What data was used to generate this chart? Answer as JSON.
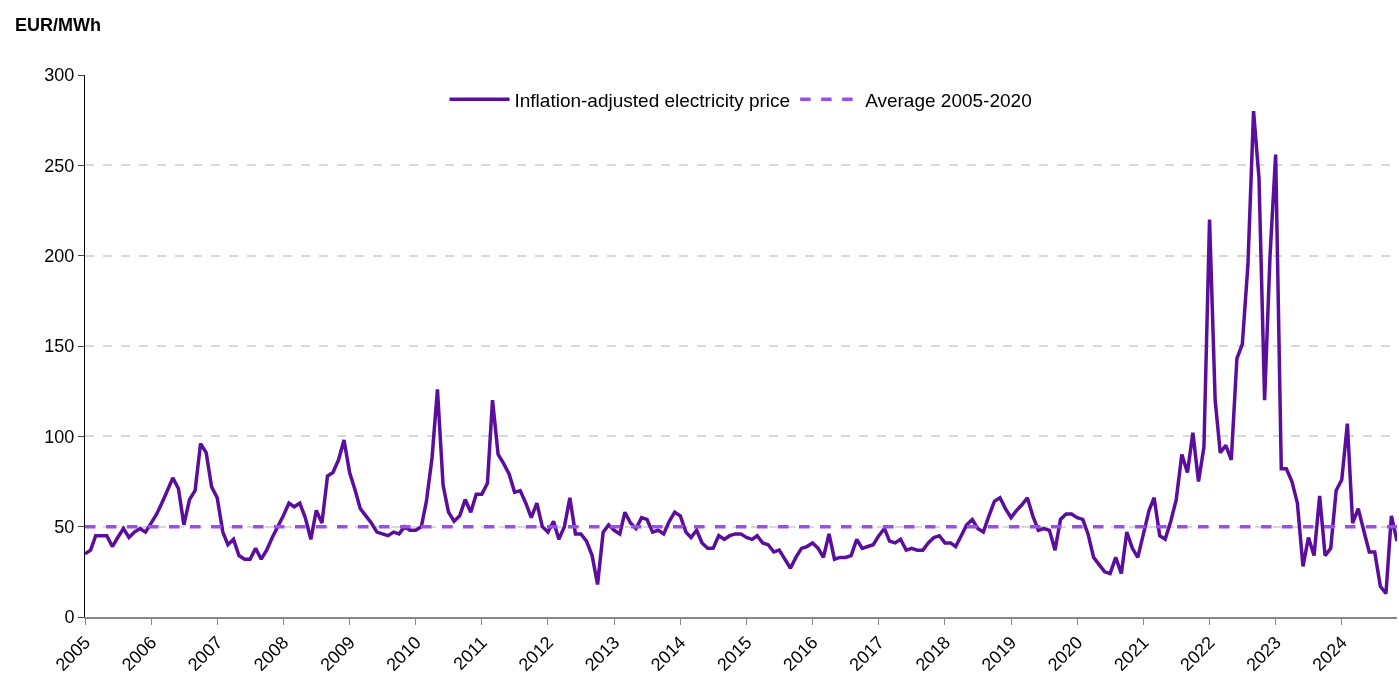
{
  "chart_data": {
    "type": "line",
    "ylabel": "EUR/MWh",
    "x": [
      "2005-01",
      "2005-02",
      "2005-03",
      "2005-04",
      "2005-05",
      "2005-06",
      "2005-07",
      "2005-08",
      "2005-09",
      "2005-10",
      "2005-11",
      "2005-12",
      "2006-01",
      "2006-02",
      "2006-03",
      "2006-04",
      "2006-05",
      "2006-06",
      "2006-07",
      "2006-08",
      "2006-09",
      "2006-10",
      "2006-11",
      "2006-12",
      "2007-01",
      "2007-02",
      "2007-03",
      "2007-04",
      "2007-05",
      "2007-06",
      "2007-07",
      "2007-08",
      "2007-09",
      "2007-10",
      "2007-11",
      "2007-12",
      "2008-01",
      "2008-02",
      "2008-03",
      "2008-04",
      "2008-05",
      "2008-06",
      "2008-07",
      "2008-08",
      "2008-09",
      "2008-10",
      "2008-11",
      "2008-12",
      "2009-01",
      "2009-02",
      "2009-03",
      "2009-04",
      "2009-05",
      "2009-06",
      "2009-07",
      "2009-08",
      "2009-09",
      "2009-10",
      "2009-11",
      "2009-12",
      "2010-01",
      "2010-02",
      "2010-03",
      "2010-04",
      "2010-05",
      "2010-06",
      "2010-07",
      "2010-08",
      "2010-09",
      "2010-10",
      "2010-11",
      "2010-12",
      "2011-01",
      "2011-02",
      "2011-03",
      "2011-04",
      "2011-05",
      "2011-06",
      "2011-07",
      "2011-08",
      "2011-09",
      "2011-10",
      "2011-11",
      "2011-12",
      "2012-01",
      "2012-02",
      "2012-03",
      "2012-04",
      "2012-05",
      "2012-06",
      "2012-07",
      "2012-08",
      "2012-09",
      "2012-10",
      "2012-11",
      "2012-12",
      "2013-01",
      "2013-02",
      "2013-03",
      "2013-04",
      "2013-05",
      "2013-06",
      "2013-07",
      "2013-08",
      "2013-09",
      "2013-10",
      "2013-11",
      "2013-12",
      "2014-01",
      "2014-02",
      "2014-03",
      "2014-04",
      "2014-05",
      "2014-06",
      "2014-07",
      "2014-08",
      "2014-09",
      "2014-10",
      "2014-11",
      "2014-12",
      "2015-01",
      "2015-02",
      "2015-03",
      "2015-04",
      "2015-05",
      "2015-06",
      "2015-07",
      "2015-08",
      "2015-09",
      "2015-10",
      "2015-11",
      "2015-12",
      "2016-01",
      "2016-02",
      "2016-03",
      "2016-04",
      "2016-05",
      "2016-06",
      "2016-07",
      "2016-08",
      "2016-09",
      "2016-10",
      "2016-11",
      "2016-12",
      "2017-01",
      "2017-02",
      "2017-03",
      "2017-04",
      "2017-05",
      "2017-06",
      "2017-07",
      "2017-08",
      "2017-09",
      "2017-10",
      "2017-11",
      "2017-12",
      "2018-01",
      "2018-02",
      "2018-03",
      "2018-04",
      "2018-05",
      "2018-06",
      "2018-07",
      "2018-08",
      "2018-09",
      "2018-10",
      "2018-11",
      "2018-12",
      "2019-01",
      "2019-02",
      "2019-03",
      "2019-04",
      "2019-05",
      "2019-06",
      "2019-07",
      "2019-08",
      "2019-09",
      "2019-10",
      "2019-11",
      "2019-12",
      "2020-01",
      "2020-02",
      "2020-03",
      "2020-04",
      "2020-05",
      "2020-06",
      "2020-07",
      "2020-08",
      "2020-09",
      "2020-10",
      "2020-11",
      "2020-12",
      "2021-01",
      "2021-02",
      "2021-03",
      "2021-04",
      "2021-05",
      "2021-06",
      "2021-07",
      "2021-08",
      "2021-09",
      "2021-10",
      "2021-11",
      "2021-12",
      "2022-01",
      "2022-02",
      "2022-03",
      "2022-04",
      "2022-05",
      "2022-06",
      "2022-07",
      "2022-08",
      "2022-09",
      "2022-10",
      "2022-11",
      "2022-12",
      "2023-01",
      "2023-02",
      "2023-03",
      "2023-04",
      "2023-05",
      "2023-06",
      "2023-07",
      "2023-08",
      "2023-09",
      "2023-10",
      "2023-11",
      "2023-12",
      "2024-01",
      "2024-02",
      "2024-03",
      "2024-04",
      "2024-05",
      "2024-06",
      "2024-07",
      "2024-08",
      "2024-09",
      "2024-10",
      "2024-11"
    ],
    "series": [
      {
        "name": "Inflation-adjusted electricity price",
        "color": "#5b0e9b",
        "values": [
          35,
          37,
          45,
          45,
          45,
          39,
          44,
          49,
          44,
          47,
          49,
          47,
          52,
          57,
          63,
          70,
          77,
          71,
          51,
          65,
          70,
          96,
          91,
          72,
          66,
          47,
          40,
          43,
          34,
          32,
          32,
          38,
          32,
          37,
          44,
          50,
          56,
          63,
          61,
          63,
          55,
          43,
          59,
          52,
          78,
          80,
          87,
          98,
          80,
          70,
          60,
          56,
          52,
          47,
          46,
          45,
          47,
          46,
          50,
          48,
          48,
          50,
          64,
          88,
          126,
          73,
          58,
          53,
          56,
          65,
          58,
          68,
          68,
          74,
          120,
          90,
          85,
          79,
          69,
          70,
          63,
          55,
          63,
          50,
          47,
          53,
          43,
          50,
          66,
          46,
          46,
          42,
          34,
          18,
          47,
          51,
          48,
          46,
          58,
          52,
          49,
          55,
          54,
          47,
          48,
          46,
          53,
          58,
          56,
          47,
          44,
          48,
          41,
          38,
          38,
          45,
          43,
          45,
          46,
          46,
          44,
          43,
          45,
          41,
          40,
          36,
          37,
          32,
          27,
          33,
          38,
          39,
          41,
          38,
          33,
          46,
          32,
          33,
          33,
          34,
          43,
          38,
          39,
          40,
          45,
          49,
          42,
          41,
          43,
          37,
          38,
          37,
          37,
          41,
          44,
          45,
          41,
          41,
          39,
          45,
          51,
          54,
          49,
          47,
          56,
          64,
          66,
          60,
          55,
          59,
          62,
          66,
          56,
          48,
          49,
          48,
          37,
          54,
          57,
          57,
          55,
          54,
          46,
          33,
          29,
          25,
          24,
          33,
          24,
          47,
          38,
          33,
          46,
          59,
          66,
          45,
          43,
          53,
          65,
          90,
          80,
          102,
          75,
          94,
          220,
          120,
          91,
          95,
          87,
          143,
          151,
          195,
          280,
          243,
          120,
          200,
          256,
          82,
          82,
          75,
          63,
          28,
          44,
          34,
          67,
          34,
          38,
          70,
          76,
          107,
          52,
          60,
          48,
          36,
          36,
          17,
          13,
          56,
          42
        ]
      }
    ],
    "ref_lines": [
      {
        "axis": "y",
        "value": 50,
        "label": "Average 2005-2020",
        "color": "#9b4de8",
        "line_style": "dashed"
      }
    ],
    "xlim": [
      "2005-01",
      "2024-11"
    ],
    "xticks": [
      "2005",
      "2006",
      "2007",
      "2008",
      "2009",
      "2010",
      "2011",
      "2012",
      "2013",
      "2014",
      "2015",
      "2016",
      "2017",
      "2018",
      "2019",
      "2020",
      "2021",
      "2022",
      "2023",
      "2024"
    ],
    "ylim": [
      0,
      300
    ],
    "yticks": [
      0,
      50,
      100,
      150,
      200,
      250,
      300
    ],
    "grid": "y",
    "legend": "top",
    "marker": "none",
    "line_style": "solid"
  }
}
